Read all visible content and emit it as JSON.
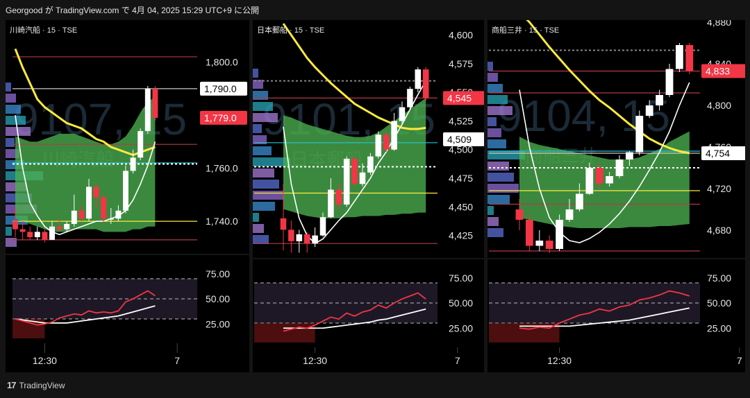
{
  "header": {
    "text": "Georgood が TradingView.com で 4月 04, 2025 15:29 UTC+9 に公開"
  },
  "footer": {
    "brand": "TradingView"
  },
  "colors": {
    "up": "#ffffff",
    "down": "#f23645",
    "cloud": "#4caf50",
    "ema": "#ffeb3b",
    "rsi": "#f23645"
  },
  "panels": [
    {
      "id": "p1",
      "title": "川崎汽船 · 15 · TSE",
      "watermark": "9107, 15",
      "watermark_name": "川崎汽船",
      "chart_data": {
        "type": "candlestick",
        "price_ticks": [
          "1,800.0",
          "1,760.0",
          "1,740.0"
        ],
        "tick_values": [
          1800,
          1760,
          1740
        ],
        "ylim": [
          1728,
          1808
        ],
        "price_labels": [
          {
            "text": "1,790.0",
            "value": 1790,
            "style": "white"
          },
          {
            "text": "1,779.0",
            "value": 1779,
            "style": "red"
          }
        ],
        "hlines": [
          {
            "value": 1802,
            "color": "#b23a48"
          },
          {
            "value": 1790,
            "color": "#cccccc"
          },
          {
            "value": 1769,
            "color": "#b23a48"
          },
          {
            "value": 1762,
            "color": "#26c6da"
          },
          {
            "value": 1761.6,
            "color": "#ffffff",
            "dash": true
          },
          {
            "value": 1740,
            "color": "#ffeb3b"
          },
          {
            "value": 1733,
            "color": "#b23a48"
          }
        ],
        "candles": [
          [
            1740,
            1737,
            1745,
            1734
          ],
          [
            1737,
            1736,
            1740,
            1733
          ],
          [
            1736,
            1734,
            1738,
            1733
          ],
          [
            1734,
            1736,
            1738,
            1733
          ],
          [
            1736,
            1733,
            1737,
            1732
          ],
          [
            1733,
            1738,
            1740,
            1733
          ],
          [
            1738,
            1737,
            1741,
            1736
          ],
          [
            1737,
            1739,
            1740,
            1736
          ],
          [
            1739,
            1744,
            1750,
            1738
          ],
          [
            1744,
            1741,
            1746,
            1740
          ],
          [
            1741,
            1753,
            1756,
            1740
          ],
          [
            1753,
            1749,
            1754,
            1745
          ],
          [
            1749,
            1741,
            1750,
            1739
          ],
          [
            1741,
            1741,
            1745,
            1739
          ],
          [
            1741,
            1744,
            1746,
            1740
          ],
          [
            1744,
            1759,
            1761,
            1743
          ],
          [
            1759,
            1764,
            1767,
            1758
          ],
          [
            1764,
            1774,
            1775,
            1763
          ],
          [
            1774,
            1790,
            1791,
            1773
          ],
          [
            1790,
            1779,
            1791,
            1778
          ]
        ],
        "ema": [
          1805,
          1798,
          1792,
          1786,
          1783,
          1781,
          1779,
          1777,
          1776,
          1775,
          1773,
          1771,
          1770,
          1768,
          1767,
          1766,
          1765,
          1766,
          1767,
          1768
        ],
        "fast": [
          1780,
          1760,
          1747,
          1742,
          1738,
          1736,
          1735,
          1736,
          1737,
          1738,
          1739,
          1740,
          1740,
          1741,
          1742,
          1744,
          1748,
          1754,
          1761,
          1770
        ],
        "cloud_top": [
          1772,
          1771,
          1770,
          1770,
          1771,
          1772,
          1773,
          1773,
          1773,
          1772,
          1771,
          1770,
          1769,
          1769,
          1770,
          1772,
          1776,
          1781,
          1785,
          1787
        ],
        "cloud_bot": [
          1741,
          1740,
          1739,
          1738,
          1737,
          1736,
          1736,
          1736,
          1737,
          1737,
          1737,
          1737,
          1736,
          1736,
          1736,
          1736,
          1737,
          1737,
          1738,
          1738
        ],
        "rsi_ticks": [
          "75.00",
          "50.00",
          "25.00"
        ],
        "rsi_tick_values": [
          75,
          50,
          25
        ],
        "rsi": [
          30,
          28,
          26,
          24,
          25,
          27,
          31,
          33,
          35,
          34,
          38,
          36,
          37,
          36,
          38,
          47,
          50,
          54,
          58,
          53
        ],
        "rsi_ma": [
          30,
          29,
          28,
          27,
          26,
          26,
          26,
          26,
          27,
          28,
          29,
          30,
          31,
          32,
          33,
          35,
          37,
          39,
          41,
          43
        ],
        "time_labels": [
          {
            "text": "12:30",
            "index": 4
          },
          {
            "text": "7",
            "index": 22
          }
        ]
      }
    },
    {
      "id": "p2",
      "title": "日本郵船 · 15 · TSE",
      "watermark": "9101, 15",
      "watermark_name": "日本郵船",
      "chart_data": {
        "type": "candlestick",
        "price_ticks": [
          "4,600",
          "4,575",
          "4,550",
          "4,525",
          "4,500",
          "4,475",
          "4,450",
          "4,425"
        ],
        "tick_values": [
          4600,
          4575,
          4550,
          4525,
          4500,
          4475,
          4450,
          4425
        ],
        "ylim": [
          4406,
          4607
        ],
        "price_labels": [
          {
            "text": "4,545",
            "value": 4545,
            "style": "red"
          },
          {
            "text": "4,509",
            "value": 4509,
            "style": "white"
          }
        ],
        "hlines": [
          {
            "value": 4560,
            "color": "#888888",
            "dash": true
          },
          {
            "value": 4545,
            "color": "#b23a48"
          },
          {
            "value": 4506,
            "color": "#26c6da"
          },
          {
            "value": 4485,
            "color": "#ffffff",
            "dash": true
          },
          {
            "value": 4462,
            "color": "#ffeb3b"
          },
          {
            "value": 4418,
            "color": "#b23a48"
          }
        ],
        "candles": [
          [
            4440,
            4430,
            4470,
            4412
          ],
          [
            4430,
            4420,
            4438,
            4410
          ],
          [
            4420,
            4426,
            4430,
            4410
          ],
          [
            4426,
            4418,
            4428,
            4410
          ],
          [
            4418,
            4425,
            4432,
            4415
          ],
          [
            4425,
            4441,
            4445,
            4424
          ],
          [
            4441,
            4465,
            4475,
            4440
          ],
          [
            4465,
            4452,
            4470,
            4448
          ],
          [
            4452,
            4492,
            4494,
            4450
          ],
          [
            4492,
            4470,
            4495,
            4468
          ],
          [
            4470,
            4480,
            4488,
            4468
          ],
          [
            4480,
            4494,
            4497,
            4478
          ],
          [
            4494,
            4513,
            4516,
            4492
          ],
          [
            4513,
            4500,
            4516,
            4498
          ],
          [
            4500,
            4525,
            4532,
            4499
          ],
          [
            4525,
            4537,
            4542,
            4522
          ],
          [
            4537,
            4553,
            4555,
            4535
          ],
          [
            4553,
            4570,
            4572,
            4550
          ],
          [
            4570,
            4545,
            4572,
            4543
          ]
        ],
        "ema": [
          4610,
          4600,
          4590,
          4580,
          4572,
          4565,
          4558,
          4552,
          4546,
          4540,
          4536,
          4532,
          4528,
          4525,
          4522,
          4519,
          4518,
          4518,
          4519
        ],
        "fast": [
          4520,
          4470,
          4440,
          4425,
          4418,
          4422,
          4430,
          4438,
          4445,
          4455,
          4465,
          4475,
          4488,
          4498,
          4510,
          4522,
          4535,
          4548,
          4560
        ],
        "cloud_top": [
          4530,
          4528,
          4525,
          4522,
          4520,
          4518,
          4516,
          4514,
          4512,
          4511,
          4511,
          4512,
          4515,
          4520,
          4525,
          4530,
          4535,
          4540,
          4545
        ],
        "cloud_bot": [
          4448,
          4446,
          4444,
          4442,
          4441,
          4440,
          4440,
          4440,
          4441,
          4441,
          4442,
          4442,
          4442,
          4443,
          4443,
          4444,
          4444,
          4445,
          4445
        ],
        "rsi_ticks": [
          "75.00",
          "50.00",
          "25.00"
        ],
        "rsi_tick_values": [
          75,
          50,
          25
        ],
        "rsi": [
          22,
          24,
          26,
          25,
          28,
          32,
          36,
          34,
          40,
          37,
          41,
          43,
          48,
          45,
          50,
          54,
          57,
          60,
          54
        ],
        "rsi_ma": [
          25,
          25,
          25,
          25,
          25,
          25,
          26,
          27,
          28,
          29,
          30,
          31,
          33,
          34,
          36,
          38,
          40,
          42,
          44
        ],
        "time_labels": [
          {
            "text": "12:30",
            "index": 4
          },
          {
            "text": "7",
            "index": 22
          }
        ]
      }
    },
    {
      "id": "p3",
      "title": "商船三井 · 15 · TSE",
      "watermark": "9104, 15",
      "watermark_name": "商船三井",
      "chart_data": {
        "type": "candlestick",
        "price_ticks": [
          "4,880",
          "4,840",
          "4,800",
          "4,760",
          "4,720",
          "4,680"
        ],
        "tick_values": [
          4880,
          4840,
          4800,
          4760,
          4720,
          4680
        ],
        "ylim": [
          4654,
          4882
        ],
        "price_labels": [
          {
            "text": "4,833",
            "value": 4833,
            "style": "red"
          },
          {
            "text": "4,754",
            "value": 4754,
            "style": "white"
          }
        ],
        "hlines": [
          {
            "value": 4853,
            "color": "#888888",
            "dash": true
          },
          {
            "value": 4833,
            "color": "#b23a48"
          },
          {
            "value": 4812,
            "color": "#b23a48"
          },
          {
            "value": 4756,
            "color": "#26c6da"
          },
          {
            "value": 4754,
            "color": "#cccccc"
          },
          {
            "value": 4740,
            "color": "#ffffff",
            "dash": true
          },
          {
            "value": 4718,
            "color": "#ffeb3b"
          },
          {
            "value": 4705,
            "color": "#b23a48"
          },
          {
            "value": 4660,
            "color": "#b23a48"
          }
        ],
        "candles": [
          [
            4700,
            4690,
            4710,
            4680
          ],
          [
            4690,
            4665,
            4695,
            4660
          ],
          [
            4665,
            4670,
            4680,
            4660
          ],
          [
            4670,
            4662,
            4675,
            4658
          ],
          [
            4662,
            4690,
            4695,
            4660
          ],
          [
            4690,
            4700,
            4710,
            4688
          ],
          [
            4700,
            4715,
            4725,
            4698
          ],
          [
            4715,
            4740,
            4745,
            4714
          ],
          [
            4740,
            4725,
            4745,
            4720
          ],
          [
            4725,
            4732,
            4736,
            4722
          ],
          [
            4732,
            4748,
            4752,
            4730
          ],
          [
            4748,
            4755,
            4756,
            4742
          ],
          [
            4755,
            4790,
            4795,
            4752
          ],
          [
            4790,
            4800,
            4805,
            4788
          ],
          [
            4800,
            4810,
            4815,
            4795
          ],
          [
            4810,
            4835,
            4840,
            4808
          ],
          [
            4835,
            4858,
            4860,
            4832
          ],
          [
            4858,
            4833,
            4860,
            4830
          ]
        ],
        "ema": [
          4890,
          4880,
          4868,
          4856,
          4845,
          4834,
          4824,
          4814,
          4805,
          4798,
          4790,
          4782,
          4775,
          4768,
          4763,
          4759,
          4756,
          4754
        ],
        "fast": [
          4815,
          4760,
          4720,
          4692,
          4678,
          4670,
          4668,
          4672,
          4678,
          4686,
          4696,
          4708,
          4722,
          4738,
          4755,
          4775,
          4800,
          4822
        ],
        "cloud_top": [
          4770,
          4765,
          4762,
          4760,
          4758,
          4756,
          4754,
          4752,
          4750,
          4748,
          4748,
          4748,
          4750,
          4754,
          4758,
          4765,
          4770,
          4775
        ],
        "cloud_bot": [
          4692,
          4690,
          4688,
          4686,
          4684,
          4683,
          4682,
          4682,
          4682,
          4682,
          4682,
          4683,
          4683,
          4683,
          4684,
          4684,
          4685,
          4686
        ],
        "rsi_ticks": [
          "75.00",
          "50.00",
          "25.00"
        ],
        "rsi_tick_values": [
          75,
          50,
          25
        ],
        "rsi": [
          25,
          24,
          26,
          25,
          30,
          34,
          38,
          40,
          44,
          42,
          46,
          48,
          53,
          55,
          58,
          62,
          60,
          57
        ],
        "rsi_ma": [
          27,
          27,
          27,
          27,
          27,
          27,
          28,
          29,
          30,
          31,
          32,
          33,
          35,
          37,
          39,
          41,
          43,
          45
        ],
        "time_labels": [
          {
            "text": "12:30",
            "index": 4
          },
          {
            "text": "7",
            "index": 22
          }
        ]
      }
    }
  ]
}
